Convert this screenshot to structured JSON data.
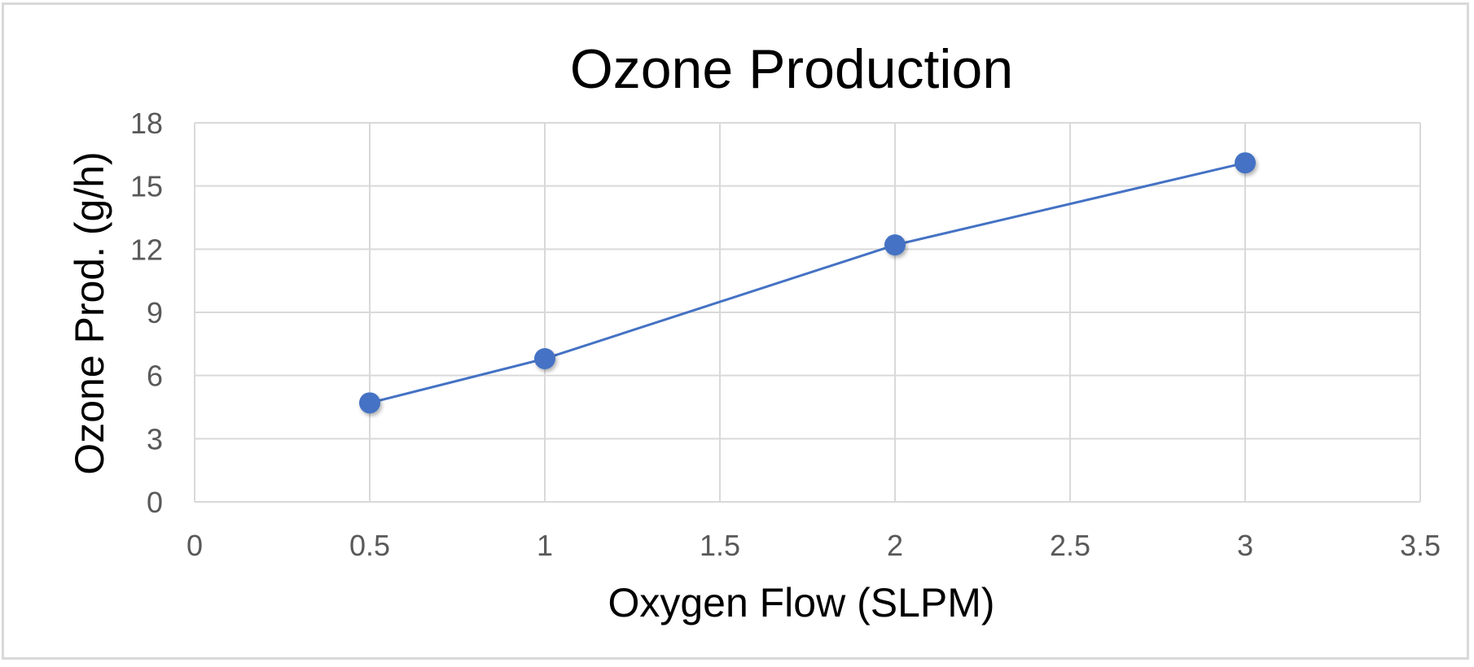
{
  "chart_data": {
    "type": "line",
    "title": "Ozone Production",
    "xlabel": "Oxygen Flow (SLPM)",
    "ylabel": "Ozone Prod. (g/h)",
    "xlim": [
      0,
      3.5
    ],
    "ylim": [
      0,
      18
    ],
    "x_ticks": [
      "0",
      "0.5",
      "1",
      "1.5",
      "2",
      "2.5",
      "3",
      "3.5"
    ],
    "y_ticks": [
      "0",
      "3",
      "6",
      "9",
      "12",
      "15",
      "18"
    ],
    "grid": true,
    "series": [
      {
        "x": [
          0.5,
          1,
          2,
          3
        ],
        "values": [
          4.7,
          6.8,
          12.2,
          16.1
        ]
      }
    ]
  },
  "colors": {
    "series_line": "#4472C4",
    "series_marker": "#4472C4",
    "grid": "#d9d9d9",
    "tick_text": "#595959"
  }
}
